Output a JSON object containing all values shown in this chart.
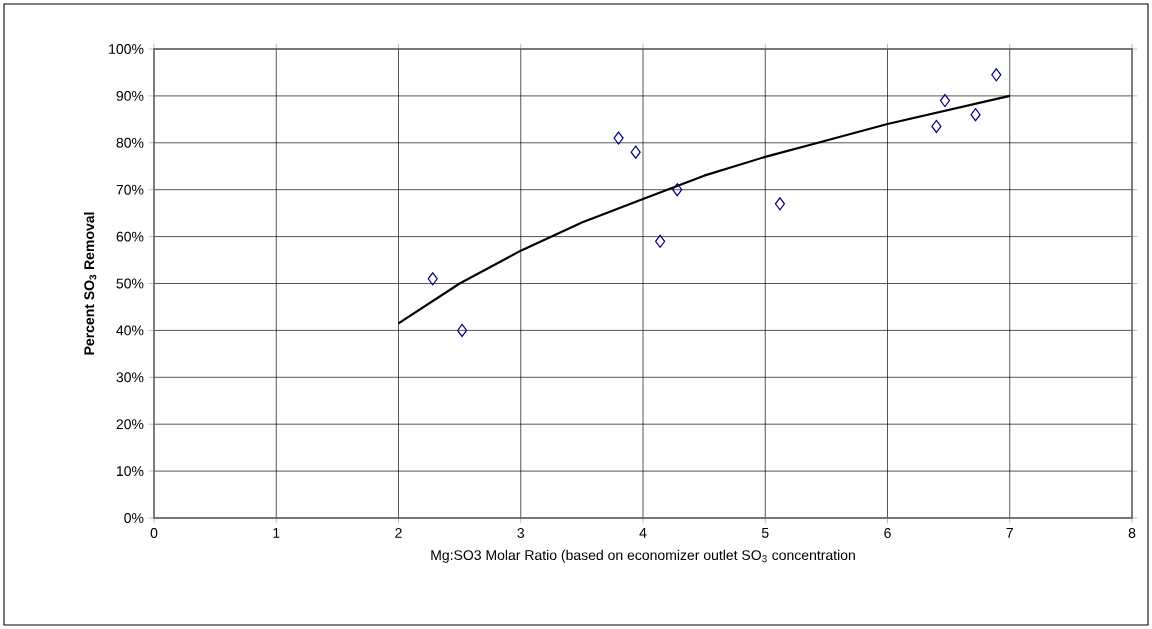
{
  "chart_data": {
    "type": "scatter",
    "xlabel": "Mg:SO3 Molar Ratio (based on economizer outlet SO$_{3}$ concentration",
    "ylabel": "Percent SO$_{3}$ Removal",
    "series": [
      {
        "color": "#000080",
        "marker": "diamond",
        "x": [
          2.28,
          2.52,
          3.8,
          3.94,
          4.14,
          4.28,
          5.12,
          6.4,
          6.47,
          6.72,
          6.89
        ],
        "values": [
          51,
          40,
          81,
          78,
          59,
          70,
          67,
          83.5,
          89,
          86,
          94.5
        ]
      },
      {
        "type": "line",
        "color": "#000000",
        "marker": "none",
        "x": [
          2,
          2.5,
          3,
          3.5,
          4,
          4.5,
          5,
          5.5,
          6,
          6.5,
          7
        ],
        "values": [
          41.5,
          50,
          57,
          63,
          68,
          73,
          77,
          80.5,
          84,
          87,
          90
        ]
      }
    ],
    "xlim": [
      0,
      8
    ],
    "xticks": [
      0,
      1,
      2,
      3,
      4,
      5,
      6,
      7,
      8
    ],
    "ylim": [
      0,
      100
    ],
    "yticks": [
      {
        "value": 0,
        "label": "0%"
      },
      {
        "value": 10,
        "label": "10%"
      },
      {
        "value": 20,
        "label": "20%"
      },
      {
        "value": 30,
        "label": "30%"
      },
      {
        "value": 40,
        "label": "40%"
      },
      {
        "value": 50,
        "label": "50%"
      },
      {
        "value": 60,
        "label": "60%"
      },
      {
        "value": 70,
        "label": "70%"
      },
      {
        "value": 80,
        "label": "80%"
      },
      {
        "value": 90,
        "label": "90%"
      },
      {
        "value": 100,
        "label": "100%"
      }
    ],
    "grid": true,
    "line_style": "solid"
  }
}
